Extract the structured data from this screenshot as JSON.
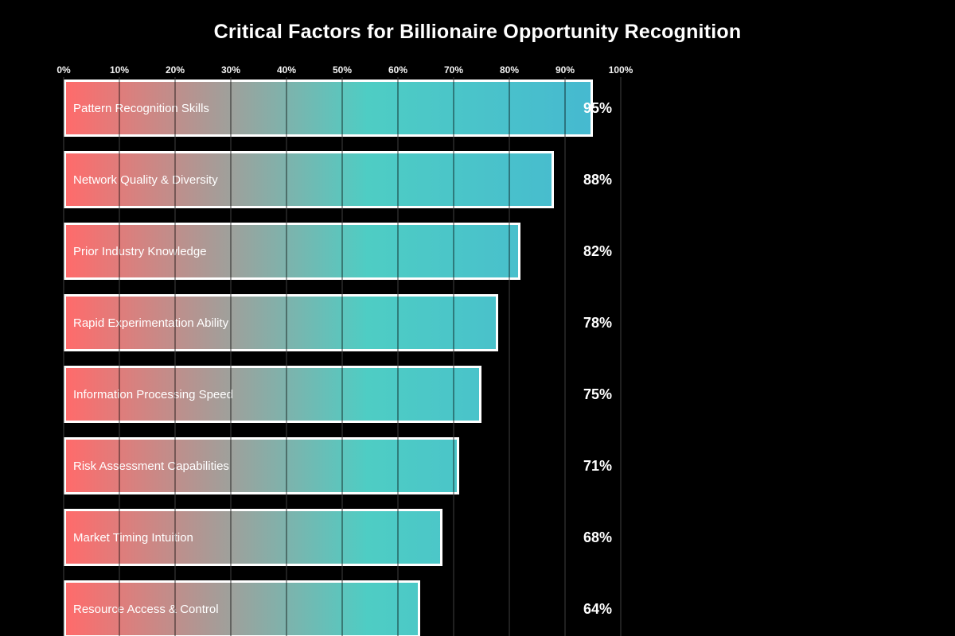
{
  "title": "Critical Factors for Billionaire Opportunity Recognition",
  "chart_data": {
    "type": "bar",
    "orientation": "horizontal",
    "title": "Critical Factors for Billionaire Opportunity Recognition",
    "categories": [
      "Pattern Recognition Skills",
      "Network Quality & Diversity",
      "Prior Industry Knowledge",
      "Rapid Experimentation Ability",
      "Information Processing Speed",
      "Risk Assessment Capabilities",
      "Market Timing Intuition",
      "Resource Access & Control"
    ],
    "values": [
      95,
      88,
      82,
      78,
      75,
      71,
      68,
      64
    ],
    "value_labels": [
      "95%",
      "88%",
      "82%",
      "78%",
      "75%",
      "71%",
      "68%",
      "64%"
    ],
    "x_ticks": [
      "0%",
      "10%",
      "20%",
      "30%",
      "40%",
      "50%",
      "60%",
      "70%",
      "80%",
      "90%",
      "100%"
    ],
    "x_tick_values": [
      0,
      10,
      20,
      30,
      40,
      50,
      60,
      70,
      80,
      90,
      100
    ],
    "xlim": [
      0,
      100
    ],
    "grid": true,
    "legend": false,
    "colors": {
      "background": "#000000",
      "text": "#ffffff",
      "grid": "#343434",
      "bar_border": "#ffffff",
      "gradient_start": "#ff6b6b",
      "gradient_mid": "#4ecdc4",
      "gradient_end": "#45b7d1"
    }
  }
}
